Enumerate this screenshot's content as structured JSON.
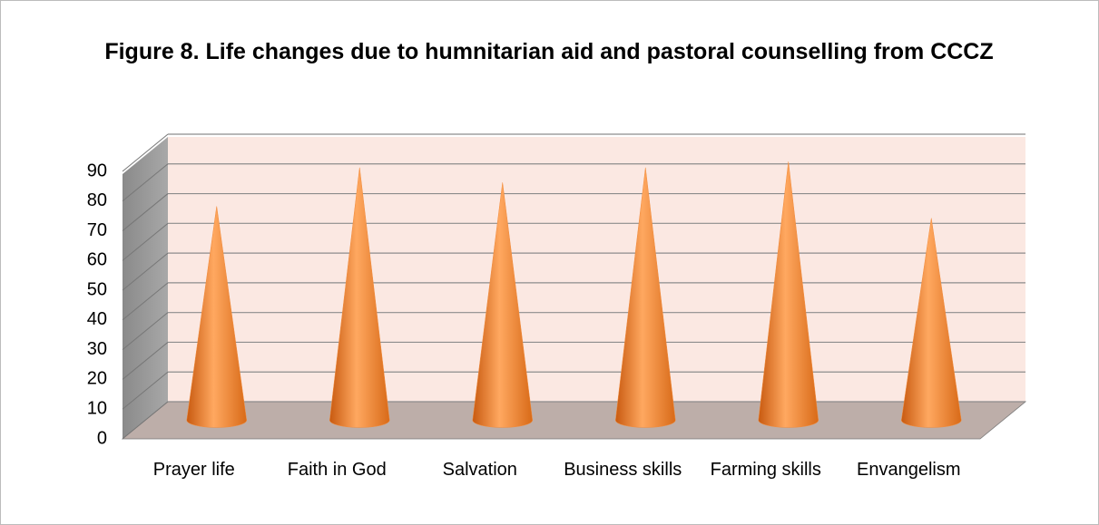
{
  "chart_data": {
    "type": "cone",
    "title": "Figure 8. Life changes due to humnitarian aid and pastoral counselling from CCCZ",
    "categories": [
      "Prayer life",
      "Faith in God",
      "Salvation",
      "Business skills",
      "Farming skills",
      "Envangelism"
    ],
    "values": [
      72,
      85,
      80,
      85,
      87,
      68
    ],
    "color": "#f28c3c",
    "ylim": [
      0,
      90
    ],
    "yticks": [
      0,
      10,
      20,
      30,
      40,
      50,
      60,
      70,
      80,
      90
    ],
    "grid": true
  }
}
